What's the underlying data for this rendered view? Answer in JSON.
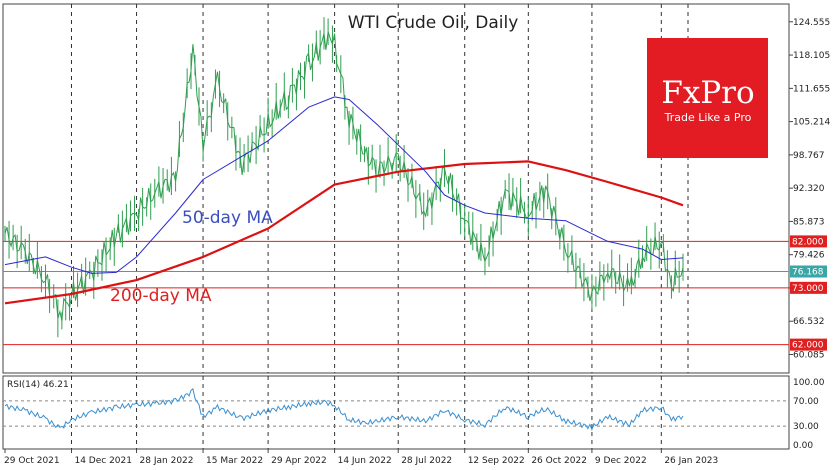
{
  "chart_data": {
    "type": "line",
    "title": "WTI Crude Oil, Daily",
    "y_ticks": [
      "124.555",
      "118.105",
      "111.655",
      "105.214",
      "98.767",
      "92.320",
      "85.873",
      "79.426",
      "72.979",
      "66.532",
      "60.085"
    ],
    "x_ticks": [
      "29 Oct 2021",
      "14 Dec 2021",
      "28 Jan 2022",
      "15 Mar 2022",
      "29 Apr 2022",
      "14 Jun 2022",
      "28 Jul 2022",
      "12 Sep 2022",
      "26 Oct 2022",
      "9 Dec 2022",
      "26 Jan 2023"
    ],
    "ylim": [
      56.5,
      128.0
    ],
    "price": {
      "name": "",
      "dates": [
        "2021-10-29",
        "2021-11-12",
        "2021-11-26",
        "2021-12-06",
        "2021-12-14",
        "2021-12-28",
        "2022-01-14",
        "2022-01-28",
        "2022-02-11",
        "2022-02-24",
        "2022-03-08",
        "2022-03-15",
        "2022-03-25",
        "2022-04-11",
        "2022-04-29",
        "2022-05-13",
        "2022-05-27",
        "2022-06-08",
        "2022-06-14",
        "2022-06-24",
        "2022-07-06",
        "2022-07-14",
        "2022-07-28",
        "2022-08-16",
        "2022-08-29",
        "2022-09-12",
        "2022-09-26",
        "2022-10-10",
        "2022-10-26",
        "2022-11-07",
        "2022-11-21",
        "2022-12-09",
        "2022-12-20",
        "2023-01-04",
        "2023-01-13",
        "2023-01-26",
        "2023-02-02",
        "2023-02-10"
      ],
      "values": [
        83.5,
        80.0,
        74.5,
        68.2,
        71.5,
        76.0,
        83.0,
        87.5,
        91.8,
        94.5,
        119.0,
        101.0,
        113.0,
        97.0,
        104.5,
        110.5,
        116.0,
        121.5,
        120.0,
        106.0,
        98.5,
        96.0,
        98.0,
        87.5,
        96.0,
        86.0,
        78.5,
        91.5,
        87.5,
        92.0,
        80.5,
        71.5,
        76.5,
        72.8,
        79.5,
        81.5,
        73.5,
        77.0
      ]
    },
    "ma50": {
      "name": "50-day MA",
      "dates": [
        "2021-10-29",
        "2021-11-26",
        "2021-12-14",
        "2021-12-28",
        "2022-01-14",
        "2022-01-28",
        "2022-02-24",
        "2022-03-15",
        "2022-04-11",
        "2022-04-29",
        "2022-05-27",
        "2022-06-14",
        "2022-06-24",
        "2022-07-14",
        "2022-08-16",
        "2022-08-29",
        "2022-09-12",
        "2022-09-26",
        "2022-10-26",
        "2022-11-21",
        "2022-12-09",
        "2022-12-20",
        "2023-01-13",
        "2023-01-26",
        "2023-02-10"
      ],
      "values": [
        77.5,
        79.0,
        77.0,
        75.8,
        76.0,
        79.0,
        87.5,
        94.0,
        98.5,
        101.5,
        108.0,
        110.0,
        109.5,
        104.5,
        95.5,
        91.0,
        89.0,
        87.5,
        86.5,
        86.0,
        83.5,
        82.0,
        80.5,
        78.5,
        78.8
      ]
    },
    "ma200": {
      "name": "200-day MA",
      "dates": [
        "2021-10-29",
        "2021-12-14",
        "2022-01-28",
        "2022-03-15",
        "2022-04-29",
        "2022-06-14",
        "2022-07-28",
        "2022-09-12",
        "2022-10-26",
        "2022-11-21",
        "2022-12-20",
        "2023-01-26",
        "2023-02-10"
      ],
      "values": [
        70.0,
        71.8,
        74.5,
        79.0,
        84.5,
        93.0,
        95.5,
        97.0,
        97.5,
        95.8,
        93.5,
        90.5,
        89.0
      ]
    },
    "levels": [
      {
        "label": "82.000",
        "value": 82.0,
        "color": "#e02020"
      },
      {
        "label": "73.000",
        "value": 73.0,
        "color": "#e02020"
      },
      {
        "label": "62.000",
        "value": 62.0,
        "color": "#e02020"
      },
      {
        "label": "76.168",
        "value": 76.168,
        "color": "#3aa6a6"
      }
    ],
    "rsi": {
      "label": "RSI(14) 46.21",
      "ticks": [
        "100.00",
        "70.00",
        "30.00",
        "0.00"
      ],
      "ylim": [
        0,
        100
      ],
      "dates": [
        "2021-10-29",
        "2021-11-12",
        "2021-11-26",
        "2021-12-06",
        "2021-12-14",
        "2021-12-28",
        "2022-01-14",
        "2022-01-28",
        "2022-02-11",
        "2022-02-24",
        "2022-03-08",
        "2022-03-15",
        "2022-03-25",
        "2022-04-11",
        "2022-04-29",
        "2022-05-13",
        "2022-05-27",
        "2022-06-08",
        "2022-06-14",
        "2022-06-24",
        "2022-07-06",
        "2022-07-14",
        "2022-07-28",
        "2022-08-16",
        "2022-08-29",
        "2022-09-12",
        "2022-09-26",
        "2022-10-10",
        "2022-10-26",
        "2022-11-07",
        "2022-11-21",
        "2022-12-09",
        "2022-12-20",
        "2023-01-04",
        "2023-01-13",
        "2023-01-26",
        "2023-02-02",
        "2023-02-10"
      ],
      "values": [
        62,
        55,
        42,
        26,
        40,
        52,
        60,
        64,
        66,
        70,
        85,
        45,
        60,
        42,
        55,
        60,
        66,
        68,
        62,
        40,
        35,
        38,
        45,
        38,
        55,
        40,
        32,
        60,
        45,
        58,
        38,
        28,
        45,
        32,
        55,
        60,
        40,
        46
      ]
    },
    "ma_label_colors": {
      "ma50": "#3a4ec0",
      "ma200": "#e02020"
    },
    "colors": {
      "price": "#2f9e4f",
      "ma50": "#2a2ad0",
      "ma200": "#dd1111",
      "rsi": "#3a8fd0",
      "levels": "#e02020",
      "current": "#3aa6a6",
      "logo_bg": "#e31b23"
    }
  },
  "brand": {
    "name": "FxPro",
    "tagline": "Trade Like a Pro"
  }
}
